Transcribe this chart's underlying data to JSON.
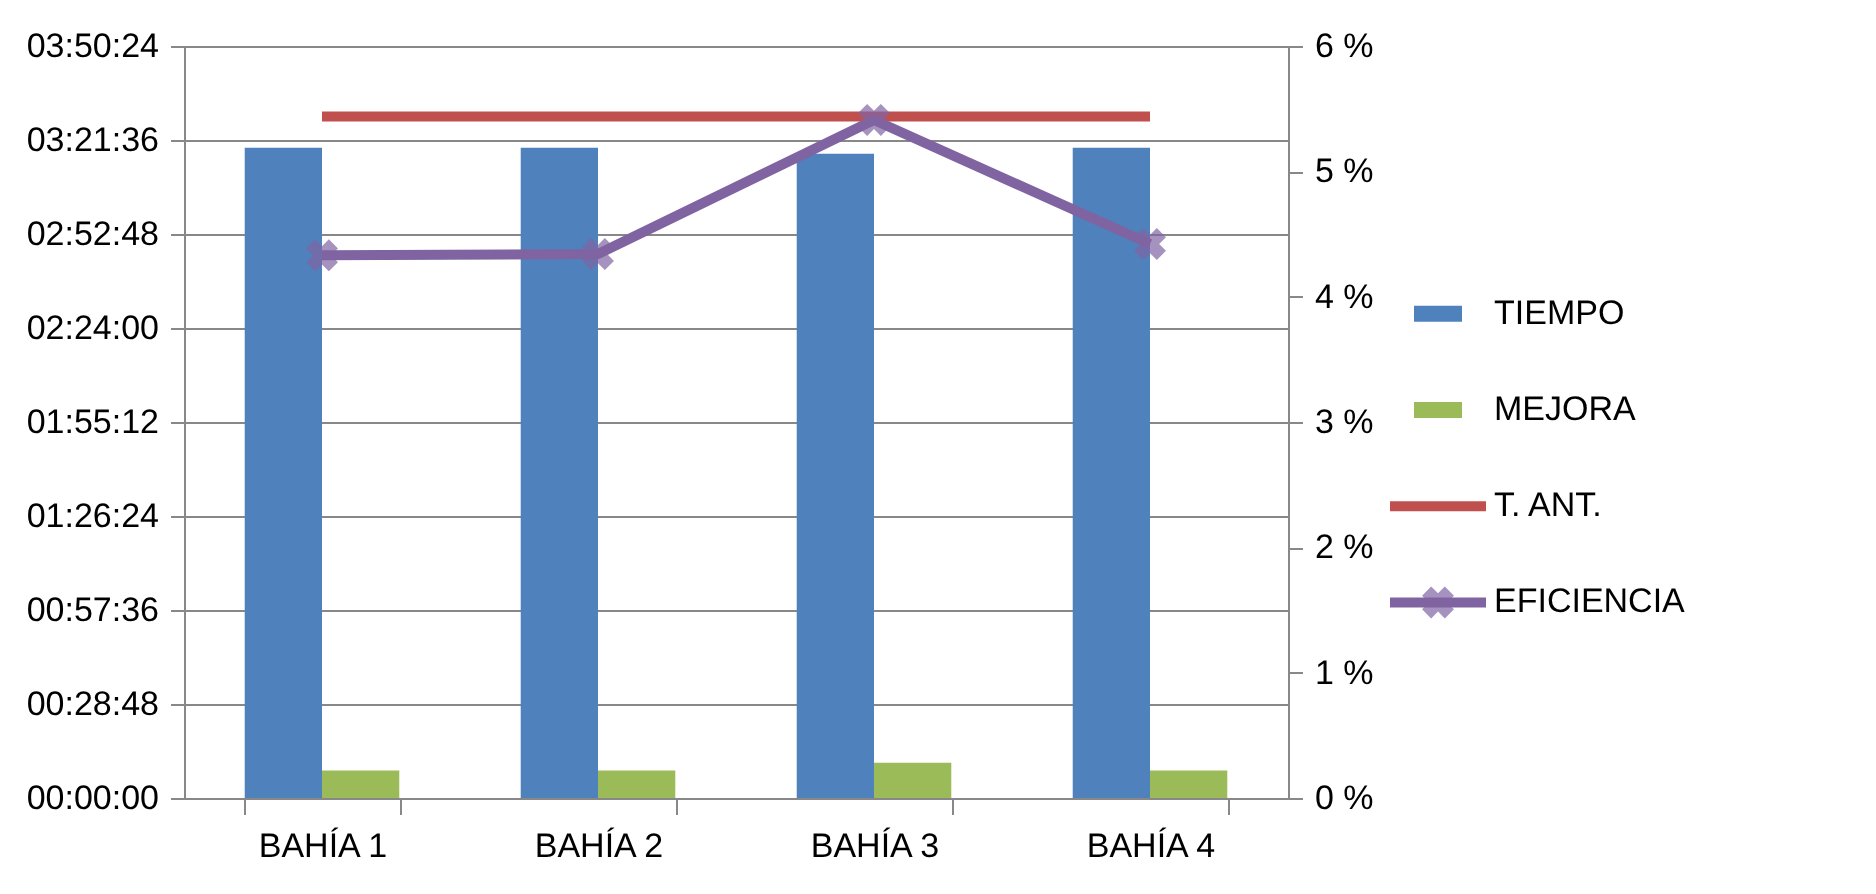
{
  "chart_data": {
    "type": "bar",
    "categories": [
      "BAHÍA 1",
      "BAHÍA 2",
      "BAHÍA 3",
      "BAHÍA 4"
    ],
    "series": [
      {
        "name": "TIEMPO",
        "color": "#4f81bd",
        "values": [
          3.32,
          3.32,
          3.29,
          3.32
        ]
      },
      {
        "name": "MEJORA",
        "color": "#9bbb59",
        "values": [
          0.14,
          0.14,
          0.18,
          0.14
        ]
      },
      {
        "name": "T. ANT.",
        "type": "line",
        "color": "#c0504d",
        "marker": "none",
        "values": [
          3.48,
          3.48,
          3.48,
          3.48
        ]
      },
      {
        "name": "EFICIENCIA",
        "type": "line",
        "axis": "y2",
        "color": "#8064a2",
        "marker": "cross",
        "values": [
          4.33,
          4.34,
          5.41,
          4.42
        ]
      }
    ],
    "ylim": [
      0,
      3.84
    ],
    "yticks": [
      {
        "value": 0,
        "label": "00:00:00"
      },
      {
        "value": 0.48,
        "label": "00:28:48"
      },
      {
        "value": 0.96,
        "label": "00:57:36"
      },
      {
        "value": 1.44,
        "label": "01:26:24"
      },
      {
        "value": 1.92,
        "label": "01:55:12"
      },
      {
        "value": 2.4,
        "label": "02:24:00"
      },
      {
        "value": 2.88,
        "label": "02:52:48"
      },
      {
        "value": 3.36,
        "label": "03:21:36"
      },
      {
        "value": 3.84,
        "label": "03:50:24"
      }
    ],
    "y2lim": [
      0,
      6
    ],
    "y2ticks": [
      {
        "value": 0,
        "label": "0 %"
      },
      {
        "value": 1,
        "label": "1 %"
      },
      {
        "value": 2,
        "label": "2 %"
      },
      {
        "value": 3,
        "label": "3 %"
      },
      {
        "value": 4,
        "label": "4 %"
      },
      {
        "value": 5,
        "label": "5 %"
      },
      {
        "value": 6,
        "label": "6 %"
      }
    ],
    "grid": "y",
    "legend": "right"
  }
}
